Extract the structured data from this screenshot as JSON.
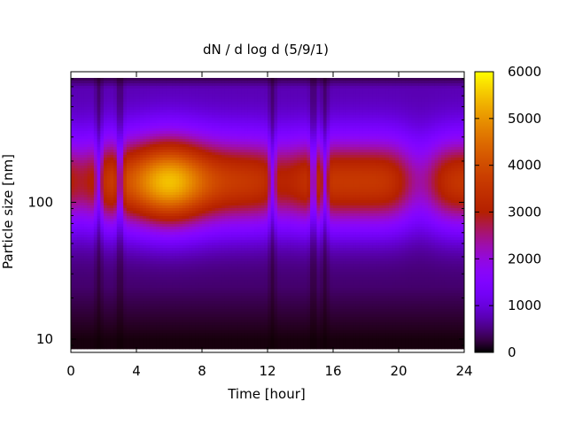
{
  "chart_data": {
    "type": "heatmap",
    "title": "dN / d log d (5/9/1)",
    "xlabel": "Time [hour]",
    "ylabel": "Particle size [nm]",
    "xlim": [
      0,
      24
    ],
    "x_ticks": [
      0,
      4,
      8,
      12,
      16,
      20,
      24
    ],
    "y_scale": "log",
    "ylim": [
      8,
      900
    ],
    "y_ticks": [
      10,
      100
    ],
    "colorbar": {
      "range": [
        0,
        6000
      ],
      "ticks": [
        0,
        1000,
        2000,
        3000,
        4000,
        5000,
        6000
      ],
      "colormap": "gnuplot",
      "colors": [
        "#000000",
        "#7a00f0",
        "#d0306a",
        "#f06000",
        "#ffff00"
      ]
    },
    "peak": {
      "time": 6,
      "size_nm": 140,
      "value": 4900
    },
    "low_concentration_times": [
      1.7,
      3.0,
      12.3,
      14.8,
      15.5
    ]
  }
}
